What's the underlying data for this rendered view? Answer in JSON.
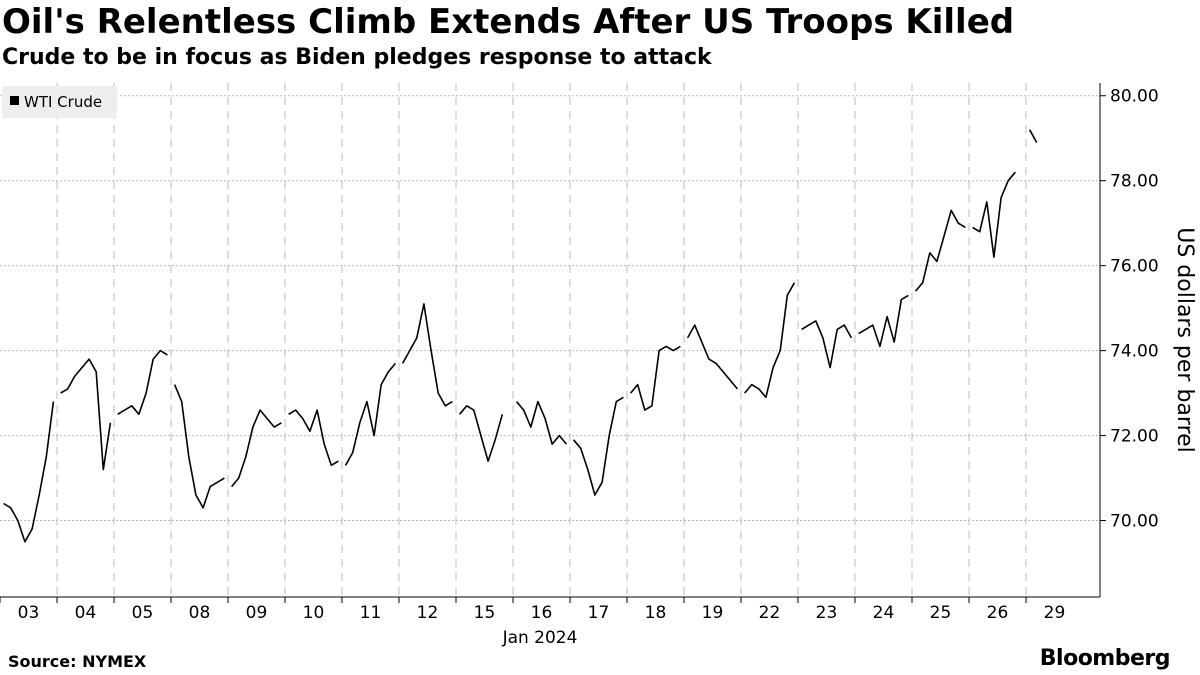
{
  "chart_data": {
    "type": "line",
    "title": "Oil's Relentless Climb Extends After US Troops Killed",
    "subtitle": "Crude to be in focus as Biden pledges response to attack",
    "y_label": "US dollars per barrel",
    "x_label": "Jan 2024",
    "source": "Source: NYMEX",
    "brand": "Bloomberg",
    "legend_position": "upper left",
    "grid": true,
    "ylim": [
      68.2,
      80.3
    ],
    "yticks": [
      {
        "value": 70,
        "label": "70.00"
      },
      {
        "value": 72,
        "label": "72.00"
      },
      {
        "value": 74,
        "label": "74.00"
      },
      {
        "value": 76,
        "label": "76.00"
      },
      {
        "value": 78,
        "label": "78.00"
      },
      {
        "value": 80,
        "label": "80.00"
      }
    ],
    "categories": [
      "03",
      "04",
      "05",
      "08",
      "09",
      "10",
      "11",
      "12",
      "15",
      "16",
      "17",
      "18",
      "19",
      "22",
      "23",
      "24",
      "25",
      "26",
      "29"
    ],
    "series": [
      {
        "name": "WTI Crude",
        "color": "#000000",
        "days": [
          [
            70.4,
            70.3,
            70.0,
            69.5,
            69.8,
            70.6,
            71.5,
            72.8
          ],
          [
            73.0,
            73.1,
            73.4,
            73.6,
            73.8,
            73.5,
            71.2,
            72.3
          ],
          [
            72.5,
            72.6,
            72.7,
            72.5,
            73.0,
            73.8,
            74.0,
            73.9
          ],
          [
            73.2,
            72.8,
            71.5,
            70.6,
            70.3,
            70.8,
            70.9,
            71.0
          ],
          [
            70.8,
            71.0,
            71.5,
            72.2,
            72.6,
            72.4,
            72.2,
            72.3
          ],
          [
            72.5,
            72.6,
            72.4,
            72.1,
            72.6,
            71.8,
            71.3,
            71.4
          ],
          [
            71.3,
            71.6,
            72.3,
            72.8,
            72.0,
            73.2,
            73.5,
            73.7
          ],
          [
            73.7,
            74.0,
            74.3,
            75.1,
            74.0,
            73.0,
            72.7,
            72.8
          ],
          [
            72.5,
            72.7,
            72.6,
            72.0,
            71.4,
            71.9,
            72.5,
            null
          ],
          [
            72.8,
            72.6,
            72.2,
            72.8,
            72.4,
            71.8,
            72.0,
            71.8
          ],
          [
            71.9,
            71.7,
            71.2,
            70.6,
            70.9,
            72.0,
            72.8,
            72.9
          ],
          [
            73.0,
            73.2,
            72.6,
            72.7,
            74.0,
            74.1,
            74.0,
            74.1
          ],
          [
            74.3,
            74.6,
            74.2,
            73.8,
            73.7,
            73.5,
            73.3,
            73.1
          ],
          [
            73.0,
            73.2,
            73.1,
            72.9,
            73.6,
            74.0,
            75.3,
            75.6
          ],
          [
            74.5,
            74.6,
            74.7,
            74.3,
            73.6,
            74.5,
            74.6,
            74.3
          ],
          [
            74.4,
            74.5,
            74.6,
            74.1,
            74.8,
            74.2,
            75.2,
            75.3
          ],
          [
            75.4,
            75.6,
            76.3,
            76.1,
            76.7,
            77.3,
            77.0,
            76.9
          ],
          [
            76.9,
            76.8,
            77.5,
            76.2,
            77.6,
            78.0,
            78.2,
            null
          ],
          [
            79.2,
            78.9,
            null,
            null,
            null,
            null,
            null,
            null
          ]
        ]
      }
    ]
  }
}
